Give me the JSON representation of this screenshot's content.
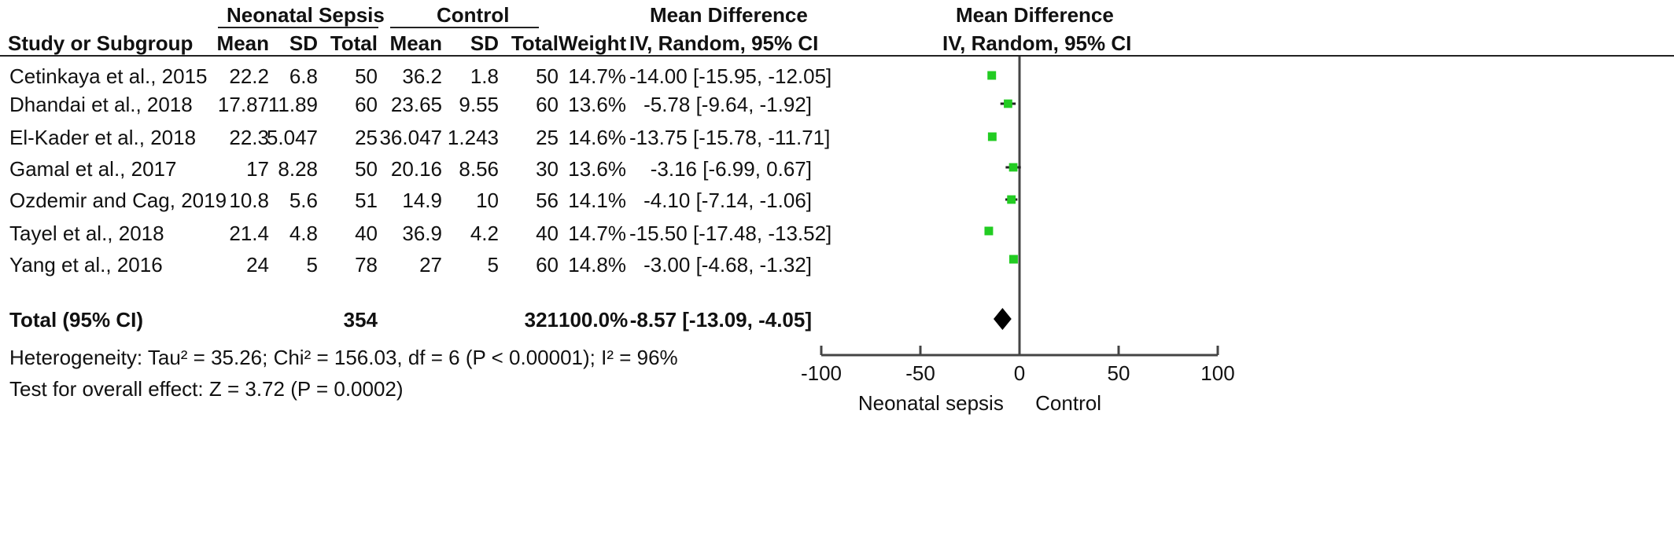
{
  "header": {
    "group1": "Neonatal Sepsis",
    "group2": "Control",
    "md_title_table": "Mean Difference",
    "md_title_plot": "Mean Difference",
    "study_col": "Study or Subgroup",
    "mean1": "Mean",
    "sd1": "SD",
    "total1": "Total",
    "mean2": "Mean",
    "sd2": "SD",
    "total2": "Total",
    "weight": "Weight",
    "md_method_table": "IV, Random, 95% CI",
    "md_method_plot": "IV, Random, 95% CI"
  },
  "studies": [
    {
      "name": "Cetinkaya et al., 2015",
      "mean1": "22.2",
      "sd1": "6.8",
      "n1": "50",
      "mean2": "36.2",
      "sd2": "1.8",
      "n2": "50",
      "weight": "14.7%",
      "ci_text": "-14.00 [-15.95, -12.05]"
    },
    {
      "name": "Dhandai et al., 2018",
      "mean1": "17.87",
      "sd1": "11.89",
      "n1": "60",
      "mean2": "23.65",
      "sd2": "9.55",
      "n2": "60",
      "weight": "13.6%",
      "ci_text": "-5.78 [-9.64, -1.92]"
    },
    {
      "name": "El-Kader et al., 2018",
      "mean1": "22.3",
      "sd1": "5.047",
      "n1": "25",
      "mean2": "36.047",
      "sd2": "1.243",
      "n2": "25",
      "weight": "14.6%",
      "ci_text": "-13.75 [-15.78, -11.71]"
    },
    {
      "name": "Gamal et al., 2017",
      "mean1": "17",
      "sd1": "8.28",
      "n1": "50",
      "mean2": "20.16",
      "sd2": "8.56",
      "n2": "30",
      "weight": "13.6%",
      "ci_text": "-3.16 [-6.99, 0.67]"
    },
    {
      "name": "Ozdemir and Cag, 2019",
      "mean1": "10.8",
      "sd1": "5.6",
      "n1": "51",
      "mean2": "14.9",
      "sd2": "10",
      "n2": "56",
      "weight": "14.1%",
      "ci_text": "-4.10 [-7.14, -1.06]"
    },
    {
      "name": "Tayel et al., 2018",
      "mean1": "21.4",
      "sd1": "4.8",
      "n1": "40",
      "mean2": "36.9",
      "sd2": "4.2",
      "n2": "40",
      "weight": "14.7%",
      "ci_text": "-15.50 [-17.48, -13.52]"
    },
    {
      "name": "Yang et al., 2016",
      "mean1": "24",
      "sd1": "5",
      "n1": "78",
      "mean2": "27",
      "sd2": "5",
      "n2": "60",
      "weight": "14.8%",
      "ci_text": "-3.00 [-4.68, -1.32]"
    }
  ],
  "total": {
    "label": "Total (95% CI)",
    "n1": "354",
    "n2": "321",
    "weight": "100.0%",
    "ci_text": "-8.57 [-13.09, -4.05]"
  },
  "footer": {
    "heterogeneity": "Heterogeneity: Tau² = 35.26; Chi² = 156.03, df = 6 (P < 0.00001); I² = 96%",
    "overall": "Test for overall effect: Z = 3.72 (P = 0.0002)"
  },
  "axis": {
    "favours_left": "Neonatal sepsis",
    "favours_right": "Control"
  },
  "colors": {
    "point": "#22cc22",
    "diamond": "#000000",
    "axis": "#444444"
  },
  "chart_data": {
    "type": "forest",
    "xlim": [
      -100,
      100
    ],
    "xticks": [
      -100,
      -50,
      0,
      50,
      100
    ],
    "xtick_labels": [
      "-100",
      "-50",
      "0",
      "50",
      "100"
    ],
    "series": [
      {
        "md": -14.0,
        "lo": -15.95,
        "hi": -12.05,
        "weight": 14.7
      },
      {
        "md": -5.78,
        "lo": -9.64,
        "hi": -1.92,
        "weight": 13.6
      },
      {
        "md": -13.75,
        "lo": -15.78,
        "hi": -11.71,
        "weight": 14.6
      },
      {
        "md": -3.16,
        "lo": -6.99,
        "hi": 0.67,
        "weight": 13.6
      },
      {
        "md": -4.1,
        "lo": -7.14,
        "hi": -1.06,
        "weight": 14.1
      },
      {
        "md": -15.5,
        "lo": -17.48,
        "hi": -13.52,
        "weight": 14.7
      },
      {
        "md": -3.0,
        "lo": -4.68,
        "hi": -1.32,
        "weight": 14.8
      }
    ],
    "pooled": {
      "md": -8.57,
      "lo": -13.09,
      "hi": -4.05
    }
  }
}
